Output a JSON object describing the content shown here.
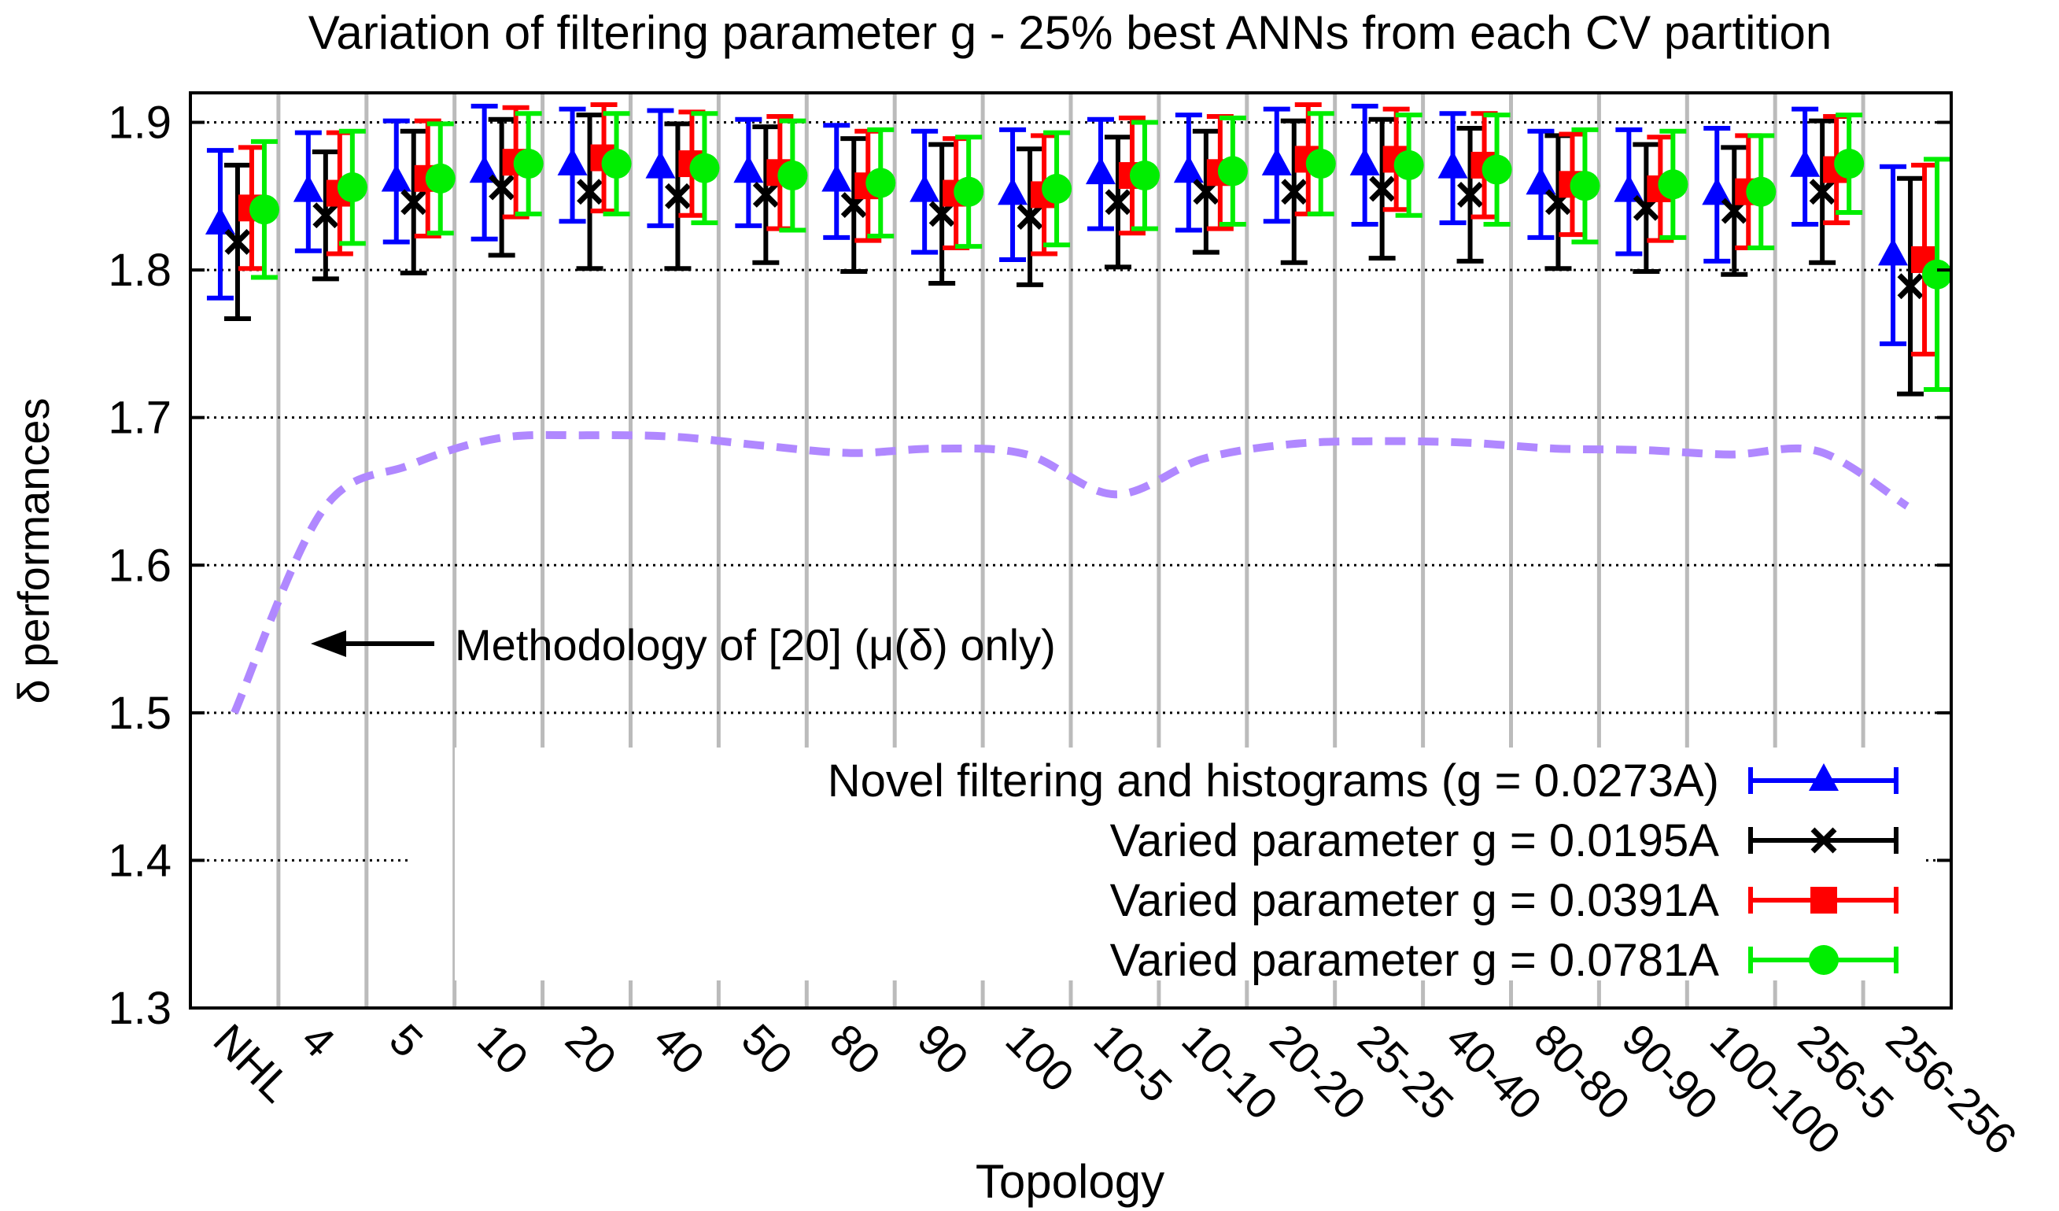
{
  "chart_data": {
    "type": "errorbar",
    "title": "Variation of filtering parameter g - 25% best ANNs from each CV partition",
    "xlabel": "Topology",
    "ylabel": "δ performances",
    "ylim": [
      1.3,
      1.92
    ],
    "yticks": [
      "1.3",
      "1.4",
      "1.5",
      "1.6",
      "1.7",
      "1.8",
      "1.9"
    ],
    "yticks_values": [
      1.3,
      1.4,
      1.5,
      1.6,
      1.7,
      1.8,
      1.9
    ],
    "categories": [
      "NHL",
      "4",
      "5",
      "10",
      "20",
      "40",
      "50",
      "80",
      "90",
      "100",
      "10-5",
      "10-10",
      "20-20",
      "25-25",
      "40-40",
      "80-80",
      "90-90",
      "100-100",
      "256-5",
      "256-256"
    ],
    "series": [
      {
        "name": "Novel filtering and histograms (g = 0.0273A)",
        "color": "#0000ff",
        "marker": "triangle",
        "values": [
          1.831,
          1.853,
          1.86,
          1.866,
          1.871,
          1.869,
          1.866,
          1.86,
          1.853,
          1.851,
          1.865,
          1.866,
          1.871,
          1.871,
          1.869,
          1.858,
          1.853,
          1.851,
          1.87,
          1.81
        ],
        "err": [
          0.05,
          0.04,
          0.041,
          0.045,
          0.038,
          0.039,
          0.036,
          0.038,
          0.041,
          0.044,
          0.037,
          0.039,
          0.038,
          0.04,
          0.037,
          0.036,
          0.042,
          0.045,
          0.039,
          0.06
        ]
      },
      {
        "name": "Varied parameter g = 0.0195A",
        "color": "#000000",
        "marker": "cross",
        "values": [
          1.819,
          1.837,
          1.846,
          1.856,
          1.853,
          1.85,
          1.851,
          1.844,
          1.838,
          1.836,
          1.846,
          1.853,
          1.853,
          1.855,
          1.851,
          1.846,
          1.842,
          1.84,
          1.853,
          1.789
        ],
        "err": [
          0.052,
          0.043,
          0.048,
          0.046,
          0.052,
          0.049,
          0.046,
          0.045,
          0.047,
          0.046,
          0.044,
          0.041,
          0.048,
          0.047,
          0.045,
          0.045,
          0.043,
          0.043,
          0.048,
          0.073
        ]
      },
      {
        "name": "Varied parameter g = 0.0391A",
        "color": "#ff0000",
        "marker": "square",
        "values": [
          1.842,
          1.852,
          1.862,
          1.873,
          1.876,
          1.872,
          1.866,
          1.857,
          1.852,
          1.851,
          1.864,
          1.866,
          1.875,
          1.875,
          1.871,
          1.858,
          1.855,
          1.853,
          1.868,
          1.807
        ],
        "err": [
          0.041,
          0.041,
          0.039,
          0.037,
          0.036,
          0.035,
          0.038,
          0.037,
          0.037,
          0.04,
          0.039,
          0.038,
          0.037,
          0.034,
          0.035,
          0.034,
          0.035,
          0.038,
          0.036,
          0.064
        ]
      },
      {
        "name": "Varied parameter g = 0.0781A",
        "color": "#00ee00",
        "marker": "circle",
        "values": [
          1.841,
          1.856,
          1.862,
          1.872,
          1.872,
          1.869,
          1.864,
          1.859,
          1.853,
          1.855,
          1.864,
          1.867,
          1.872,
          1.871,
          1.868,
          1.857,
          1.858,
          1.853,
          1.872,
          1.797
        ],
        "err": [
          0.046,
          0.038,
          0.037,
          0.034,
          0.034,
          0.037,
          0.037,
          0.036,
          0.037,
          0.038,
          0.036,
          0.036,
          0.034,
          0.034,
          0.037,
          0.038,
          0.036,
          0.038,
          0.033,
          0.078
        ]
      }
    ],
    "reference_line": {
      "name": "Methodology of [20] (μ(δ) only)",
      "color": "#b088ff",
      "style": "dashed",
      "values": [
        1.5,
        1.637,
        1.668,
        1.686,
        1.688,
        1.687,
        1.681,
        1.676,
        1.679,
        1.675,
        1.648,
        1.672,
        1.682,
        1.684,
        1.683,
        1.679,
        1.678,
        1.675,
        1.677,
        1.64
      ]
    },
    "annotation": {
      "text": "Methodology of [20] (μ(δ) only)",
      "arrow": "left",
      "points_to_category": "4",
      "at_value": 1.55
    },
    "legend_position": "bottom-right",
    "grid": {
      "y": "dotted",
      "x": "solid-gray-separators"
    }
  }
}
